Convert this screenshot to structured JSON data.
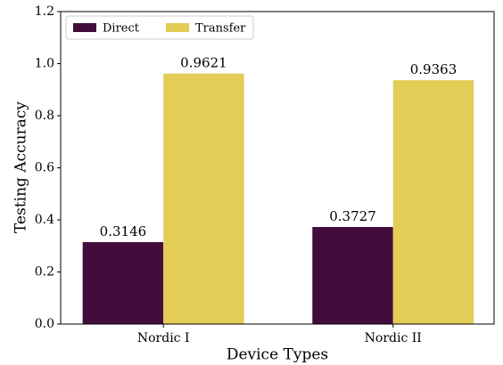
{
  "chart_data": {
    "type": "bar",
    "xlabel": "Device Types",
    "ylabel": "Testing Accuracy",
    "categories": [
      "Nordic I",
      "Nordic II"
    ],
    "series": [
      {
        "name": "Direct",
        "color": "#420d3b",
        "values": [
          0.3146,
          0.3727
        ]
      },
      {
        "name": "Transfer",
        "color": "#e3cd57",
        "values": [
          0.9621,
          0.9363
        ]
      }
    ],
    "ylim": [
      0,
      1.2
    ],
    "yticks": [
      {
        "value": 0,
        "label": "0.0"
      },
      0.2,
      0.4,
      0.6,
      0.8,
      {
        "value": 1,
        "label": "1.0"
      },
      1.2
    ],
    "legend": "upper left"
  }
}
